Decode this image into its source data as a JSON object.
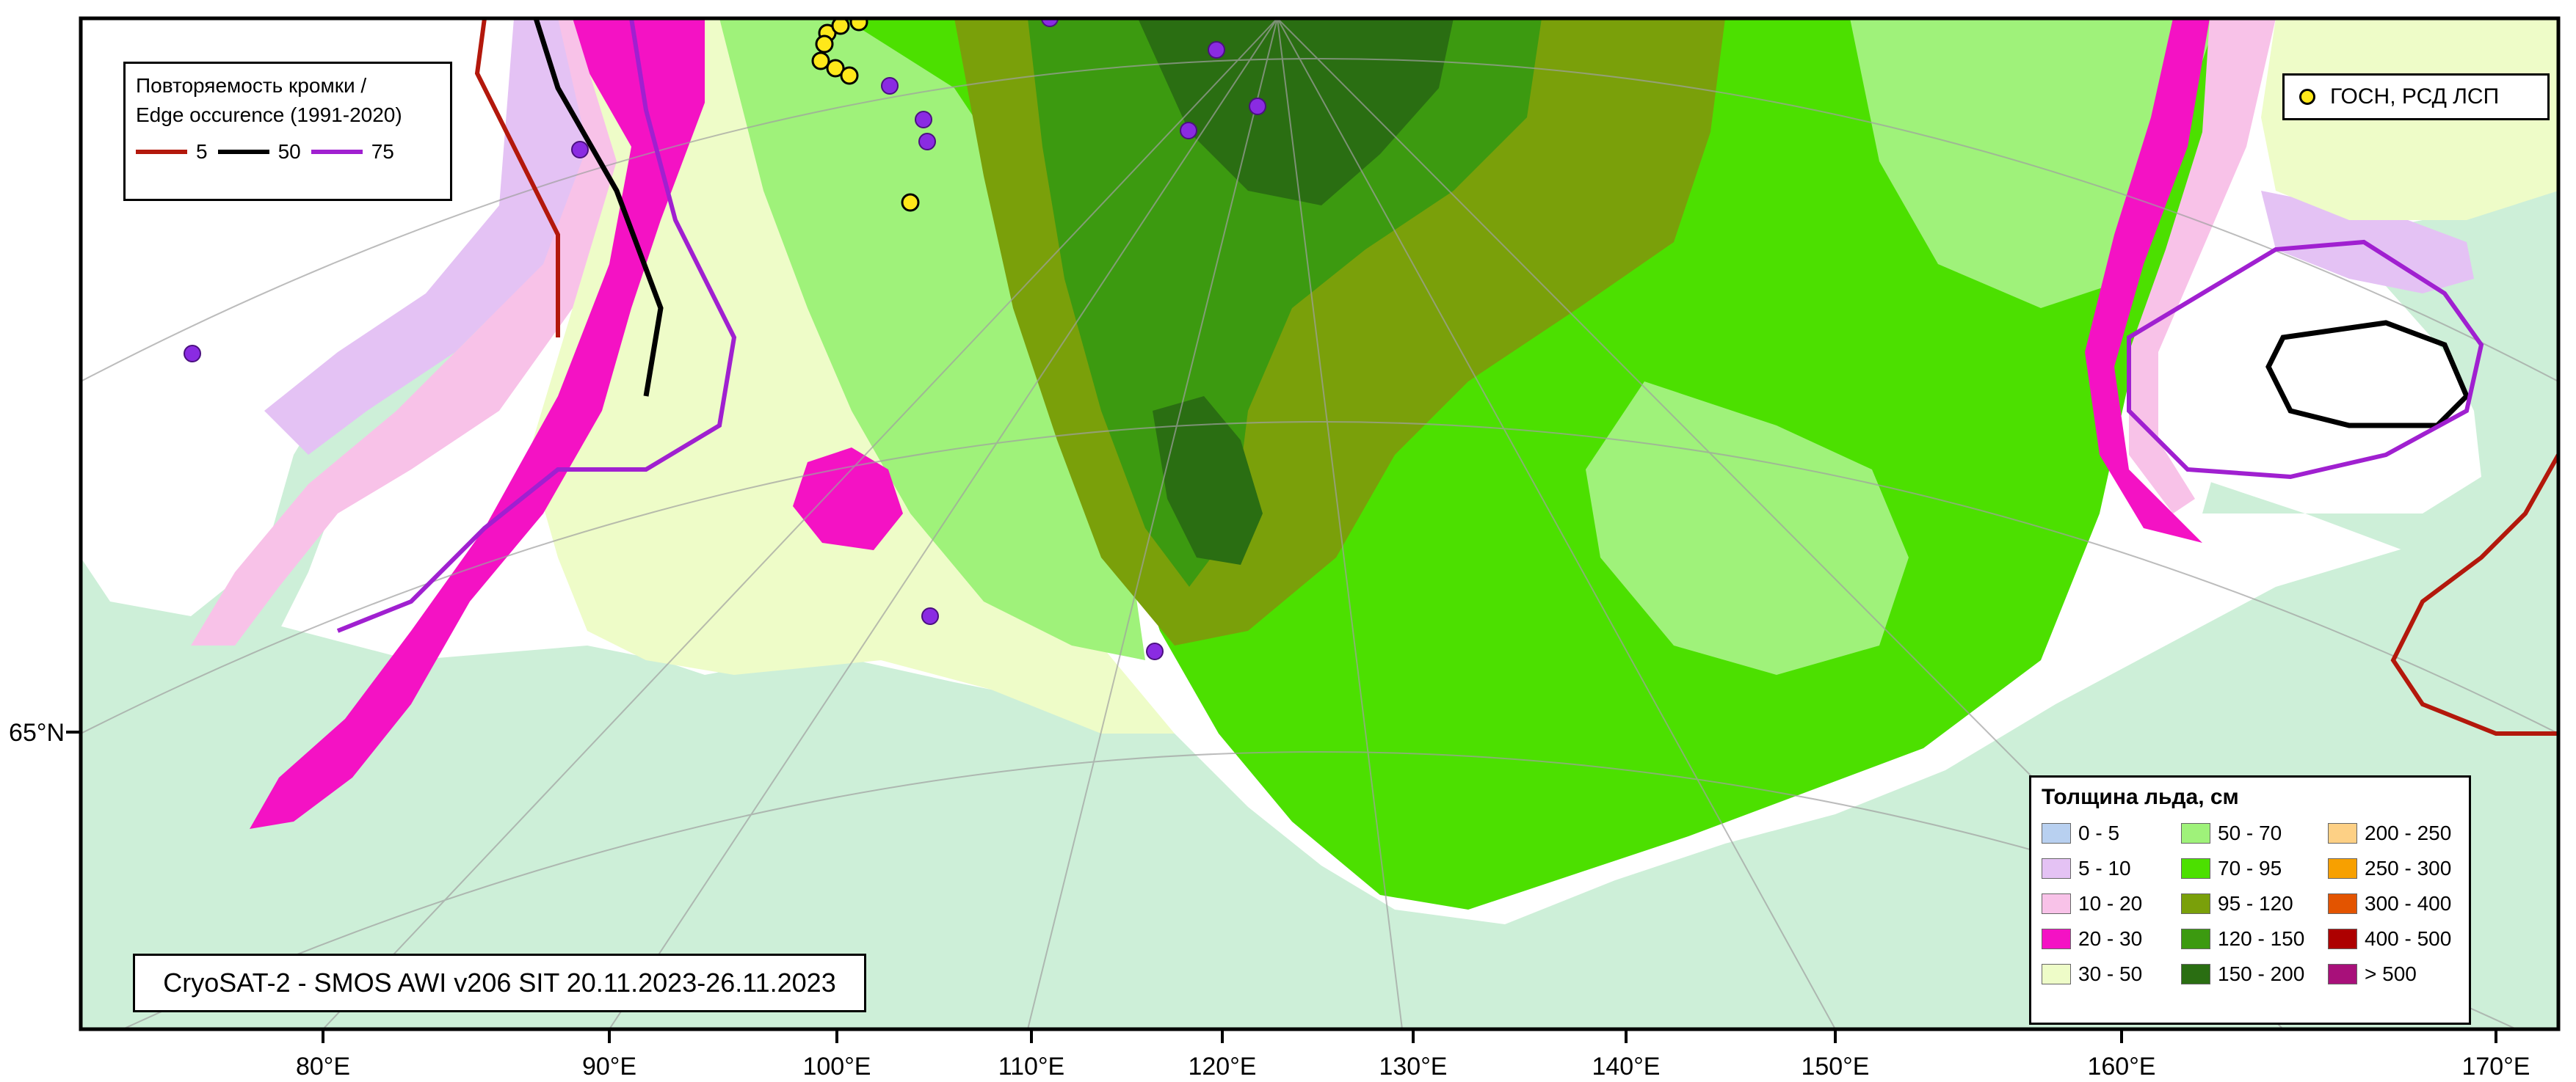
{
  "map": {
    "frame_color": "#000000",
    "ocean_color": "#ffffff",
    "land_color": "#cdefd8"
  },
  "axes": {
    "longitude_labels": [
      "80°E",
      "90°E",
      "100°E",
      "110°E",
      "120°E",
      "130°E",
      "140°E",
      "150°E",
      "160°E",
      "170°E"
    ],
    "latitude_labels": [
      "65°N"
    ]
  },
  "edge_legend": {
    "title_ru": "Повторяемость кромки /",
    "title_en": "Edge occurence (1991-2020)",
    "lines": [
      {
        "label": "5",
        "color": "#b3180c"
      },
      {
        "label": "50",
        "color": "#000000"
      },
      {
        "label": "75",
        "color": "#a020d0"
      }
    ]
  },
  "points_legend": {
    "label": "ГОСН, РСД ЛСП",
    "color": "#ffe81a"
  },
  "ice_legend": {
    "title": "Толщина льда, см",
    "classes": [
      {
        "label": "0 - 5",
        "color": "#b8d0f0"
      },
      {
        "label": "5 - 10",
        "color": "#e4c2f4"
      },
      {
        "label": "10 - 20",
        "color": "#f8c2e8"
      },
      {
        "label": "20 - 30",
        "color": "#f412c4"
      },
      {
        "label": "30 - 50",
        "color": "#eefcc8"
      },
      {
        "label": "50 - 70",
        "color": "#9ff27a"
      },
      {
        "label": "70 - 95",
        "color": "#4ce000"
      },
      {
        "label": "95 - 120",
        "color": "#7aa00a"
      },
      {
        "label": "120 - 150",
        "color": "#3c9a10"
      },
      {
        "label": "150 - 200",
        "color": "#2a6e12"
      },
      {
        "label": "200 - 250",
        "color": "#fdd085"
      },
      {
        "label": "250 - 300",
        "color": "#f7a000"
      },
      {
        "label": "300 - 400",
        "color": "#e35400"
      },
      {
        "label": "400 - 500",
        "color": "#ad0000"
      },
      {
        "label": "> 500",
        "color": "#a8107a"
      }
    ]
  },
  "source_label": "CryoSAT-2 - SMOS AWI v206 SIT 20.11.2023-26.11.2023"
}
